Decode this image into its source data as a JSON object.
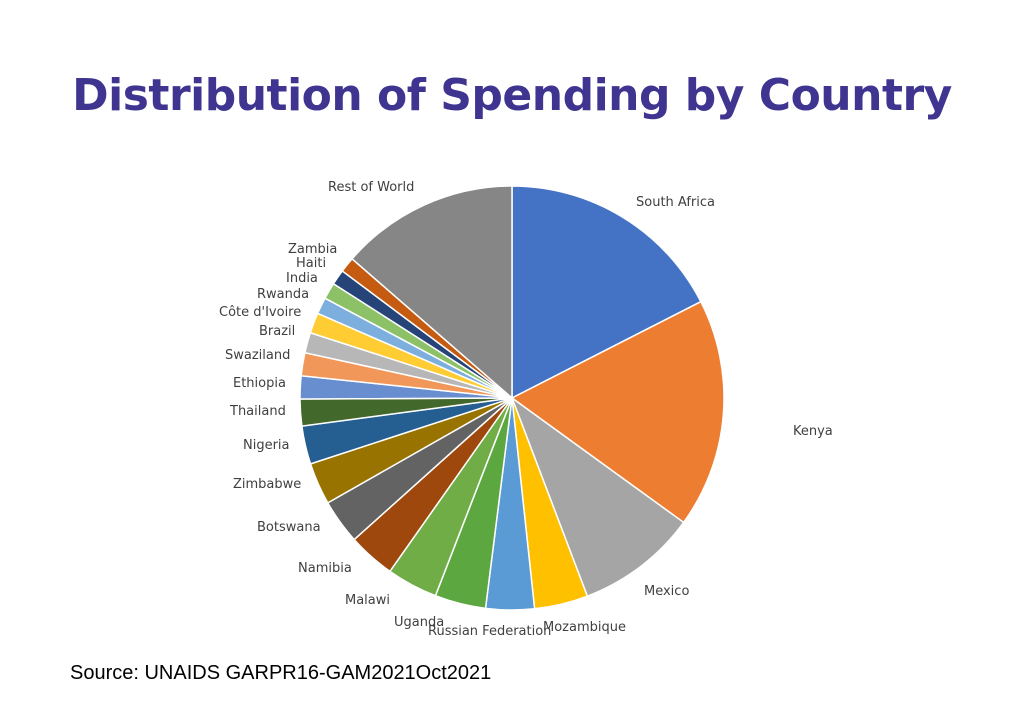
{
  "header": {
    "title": "Distribution of Spending by Country"
  },
  "footer": {
    "source": "Source: UNAIDS GARPR16-GAM2021Oct2021"
  },
  "chart_data": {
    "type": "pie",
    "title": "Distribution of Spending by Country",
    "slices": [
      {
        "label": "South Africa",
        "value": 18.0,
        "color": "#4472c4"
      },
      {
        "label": "Kenya",
        "value": 18.0,
        "color": "#ed7d31"
      },
      {
        "label": "Mexico",
        "value": 9.5,
        "color": "#a5a5a5"
      },
      {
        "label": "Mozambique",
        "value": 4.2,
        "color": "#ffc000"
      },
      {
        "label": "Russian Federation",
        "value": 3.8,
        "color": "#5b9bd5"
      },
      {
        "label": "Uganda",
        "value": 4.0,
        "color": "#5da741"
      },
      {
        "label": "Malawi",
        "value": 4.0,
        "color": "#70ad47"
      },
      {
        "label": "Namibia",
        "value": 3.7,
        "color": "#9e480e"
      },
      {
        "label": "Botswana",
        "value": 3.5,
        "color": "#636363"
      },
      {
        "label": "Zimbabwe",
        "value": 3.3,
        "color": "#997300"
      },
      {
        "label": "Nigeria",
        "value": 3.0,
        "color": "#255e91"
      },
      {
        "label": "Thailand",
        "value": 2.1,
        "color": "#43682b"
      },
      {
        "label": "Ethiopia",
        "value": 1.8,
        "color": "#698ed0"
      },
      {
        "label": "Swaziland",
        "value": 1.8,
        "color": "#f1975a"
      },
      {
        "label": "Brazil",
        "value": 1.6,
        "color": "#b7b7b7"
      },
      {
        "label": "Côte d'Ivoire",
        "value": 1.6,
        "color": "#ffcd33"
      },
      {
        "label": "Rwanda",
        "value": 1.3,
        "color": "#7cafdd"
      },
      {
        "label": "India",
        "value": 1.3,
        "color": "#8cc168"
      },
      {
        "label": "Haiti",
        "value": 1.2,
        "color": "#264478"
      },
      {
        "label": "Zambia",
        "value": 1.2,
        "color": "#c55a11"
      },
      {
        "label": "Rest of World",
        "value": 14.0,
        "color": "#868686"
      }
    ],
    "legend": "none"
  }
}
